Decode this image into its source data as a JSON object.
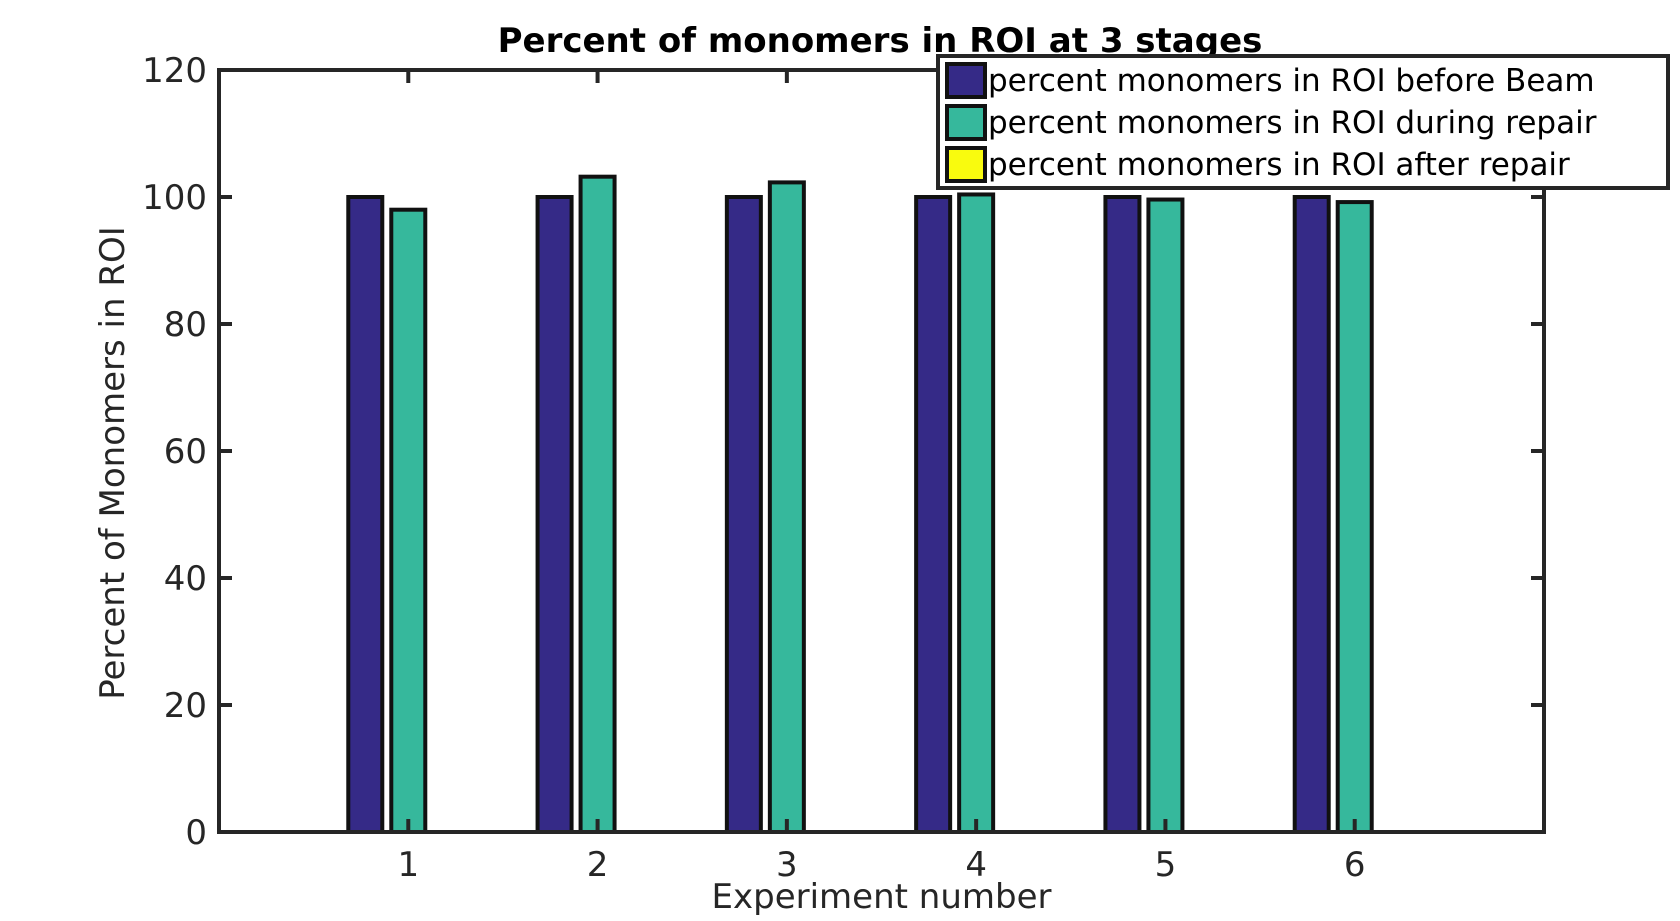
{
  "chart_data": {
    "type": "bar",
    "title": "Percent of monomers in ROI at 3 stages",
    "xlabel": "Experiment number",
    "ylabel": "Percent of Monomers in ROI",
    "categories": [
      "1",
      "2",
      "3",
      "4",
      "5",
      "6"
    ],
    "xlim": [
      0,
      7
    ],
    "ylim": [
      0,
      120
    ],
    "yticks": [
      0,
      20,
      40,
      60,
      80,
      100,
      120
    ],
    "ytick_labels": [
      "0",
      "20",
      "40",
      "60",
      "80",
      "100",
      "120"
    ],
    "grid": false,
    "legend_position": "top-right",
    "series": [
      {
        "name": "percent monomers in ROI before Beam",
        "color": "#352a87",
        "values": [
          100,
          100,
          100,
          100,
          100,
          100
        ]
      },
      {
        "name": "percent monomers in ROI during repair",
        "color": "#36b89c",
        "values": [
          98,
          103.2,
          102.3,
          100.4,
          99.6,
          99.2
        ]
      },
      {
        "name": "percent monomers in ROI after repair",
        "color": "#f9fb0e",
        "values": [
          0,
          0,
          0,
          0,
          0,
          0
        ]
      }
    ]
  }
}
